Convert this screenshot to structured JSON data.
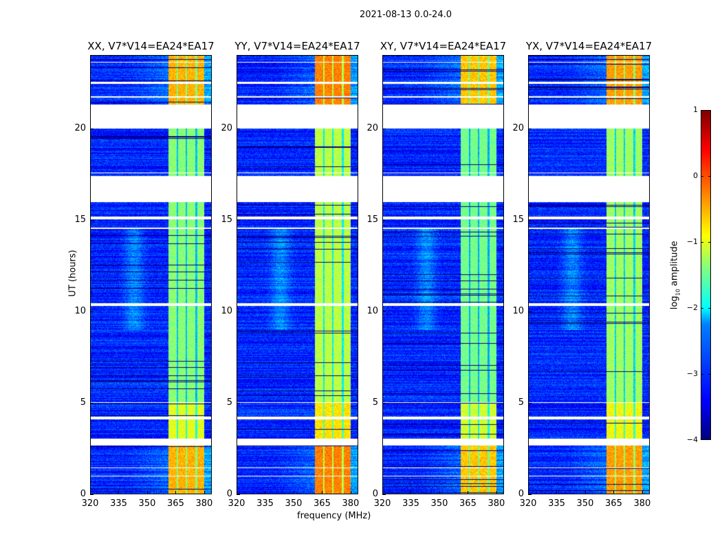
{
  "chart_data": {
    "type": "heatmap",
    "title": "2021-08-13 0.0-24.0",
    "xlabel": "frequency (MHz)",
    "ylabel": "UT (hours)",
    "xlim": [
      320,
      384
    ],
    "ylim": [
      0,
      24
    ],
    "xticks": [
      "320",
      "335",
      "350",
      "365",
      "380"
    ],
    "yticks": [
      "0",
      "5",
      "10",
      "15",
      "20"
    ],
    "panels": [
      {
        "title": "XX, V7*V14=EA24*EA17",
        "band_boost": 0.0
      },
      {
        "title": "YY, V7*V14=EA24*EA17",
        "band_boost": 0.25
      },
      {
        "title": "XY, V7*V14=EA24*EA17",
        "band_boost": -0.1
      },
      {
        "title": "YX, V7*V14=EA24*EA17",
        "band_boost": 0.1
      }
    ],
    "bright_band_mhz": [
      361,
      380
    ],
    "band_gaps_mhz": [
      365.8,
      370.5,
      375.6
    ],
    "flagged_hours": [
      [
        20.0,
        21.3
      ],
      [
        16.0,
        17.4
      ],
      [
        2.7,
        3.05
      ],
      [
        10.3,
        10.45
      ],
      [
        14.5,
        14.6
      ],
      [
        15.05,
        15.2
      ],
      [
        4.1,
        4.25
      ],
      [
        22.45,
        22.55
      ],
      [
        23.6,
        23.65
      ],
      [
        21.7,
        21.75
      ],
      [
        17.55,
        17.6
      ],
      [
        1.0,
        1.05
      ],
      [
        1.45,
        1.5
      ],
      [
        5.0,
        5.05
      ]
    ],
    "colorbar": {
      "label_main": "log",
      "label_sub": "10",
      "label_rest": " amplitude",
      "range": [
        -4,
        1
      ],
      "ticks": [
        "−4",
        "−3",
        "−2",
        "−1",
        "0",
        "1"
      ]
    }
  }
}
